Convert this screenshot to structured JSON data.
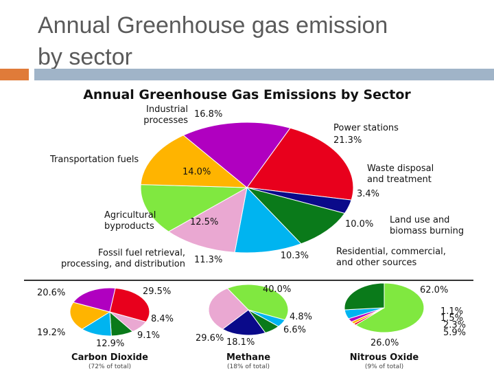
{
  "slide": {
    "title_line1": "Annual Greenhouse gas emission",
    "title_line2": "by sector"
  },
  "chart_data": [
    {
      "type": "pie",
      "title": "Annual Greenhouse Gas Emissions by Sector",
      "slices": [
        {
          "label": "Power stations",
          "value": 21.3,
          "value_text": "21.3%",
          "color": "#e8001c"
        },
        {
          "label": "Waste disposal and treatment",
          "value": 3.4,
          "value_text": "3.4%",
          "color": "#0a0a8a"
        },
        {
          "label": "Land use and biomass burning",
          "value": 10.0,
          "value_text": "10.0%",
          "color": "#0a7a1a"
        },
        {
          "label": "Residential, commercial, and other sources",
          "value": 10.3,
          "value_text": "10.3%",
          "color": "#00b4f0"
        },
        {
          "label": "Fossil fuel retrieval, processing, and distribution",
          "value": 11.3,
          "value_text": "11.3%",
          "color": "#eaa8d2"
        },
        {
          "label": "Agricultural byproducts",
          "value": 12.5,
          "value_text": "12.5%",
          "color": "#80e840"
        },
        {
          "label": "Transportation fuels",
          "value": 14.0,
          "value_text": "14.0%",
          "color": "#ffb400"
        },
        {
          "label": "Industrial processes",
          "value": 16.8,
          "value_text": "16.8%",
          "color": "#b000c0"
        }
      ]
    },
    {
      "type": "pie",
      "title": "Carbon Dioxide",
      "subtitle": "(72% of total)",
      "slices": [
        {
          "value": 29.5,
          "value_text": "29.5%",
          "color": "#e8001c"
        },
        {
          "value": 8.4,
          "value_text": "8.4%",
          "color": "#eaa8d2"
        },
        {
          "value": 9.1,
          "value_text": "9.1%",
          "color": "#0a7a1a"
        },
        {
          "value": 12.9,
          "value_text": "12.9%",
          "color": "#00b4f0"
        },
        {
          "value": 19.2,
          "value_text": "19.2%",
          "color": "#ffb400"
        },
        {
          "value": 20.6,
          "value_text": "20.6%",
          "color": "#b000c0"
        }
      ]
    },
    {
      "type": "pie",
      "title": "Methane",
      "subtitle": "(18% of total)",
      "slices": [
        {
          "value": 40.0,
          "value_text": "40.0%",
          "color": "#80e840"
        },
        {
          "value": 4.8,
          "value_text": "4.8%",
          "color": "#00b4f0"
        },
        {
          "value": 6.6,
          "value_text": "6.6%",
          "color": "#0a7a1a"
        },
        {
          "value": 18.1,
          "value_text": "18.1%",
          "color": "#0a0a8a"
        },
        {
          "value": 29.6,
          "value_text": "29.6%",
          "color": "#eaa8d2"
        }
      ]
    },
    {
      "type": "pie",
      "title": "Nitrous Oxide",
      "subtitle": "(9% of total)",
      "slices": [
        {
          "value": 62.0,
          "value_text": "62.0%",
          "color": "#80e840"
        },
        {
          "value": 1.1,
          "value_text": "1.1%",
          "color": "#e8001c"
        },
        {
          "value": 1.5,
          "value_text": "1.5%",
          "color": "#ffb400"
        },
        {
          "value": 2.3,
          "value_text": "2.3%",
          "color": "#b000c0"
        },
        {
          "value": 5.9,
          "value_text": "5.9%",
          "color": "#00b4f0"
        },
        {
          "value": 26.0,
          "value_text": "26.0%",
          "color": "#0a7a1a"
        }
      ]
    }
  ]
}
